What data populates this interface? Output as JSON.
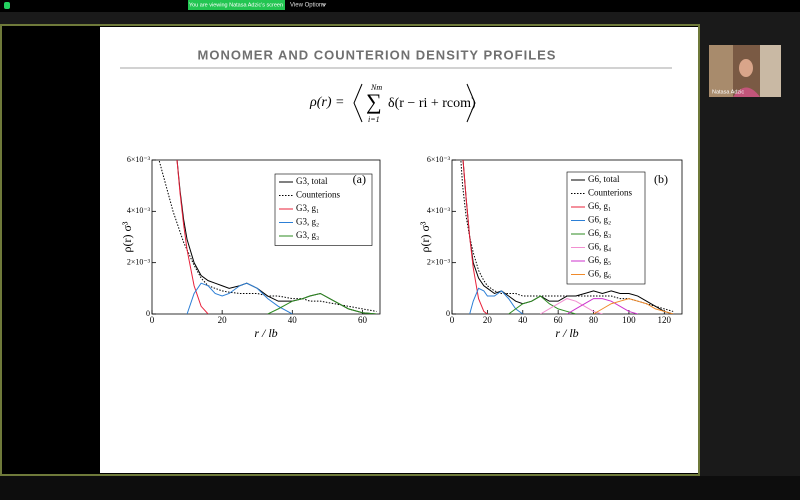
{
  "zoom_bar": {
    "banner": "You are viewing Natasa Adzic's screen",
    "view_options": "View Options"
  },
  "participant": {
    "name": "Natasa Adzic"
  },
  "slide": {
    "title": "MONOMER AND COUNTERION DENSITY PROFILES",
    "formula": {
      "lhs": "ρ(r) =",
      "sum": "∑",
      "upper": "Nm",
      "lower": "i=1",
      "body": "δ(r − ri + rcom)"
    }
  },
  "chart_data": [
    {
      "type": "line",
      "annotation": "(a)",
      "x_label": "r / lb",
      "y_label": "ρ(r) σ³",
      "xlim": [
        0,
        65
      ],
      "ylim": [
        0,
        0.006
      ],
      "xticks": [
        0,
        20,
        40,
        60
      ],
      "yticks": [
        0,
        {
          "value": 0.002,
          "label": "2×10⁻³"
        },
        {
          "value": 0.004,
          "label": "4×10⁻³"
        },
        {
          "value": 0.006,
          "label": "6×10⁻³"
        }
      ],
      "legend": "upper right",
      "x": [
        0,
        1,
        2,
        3,
        4,
        5,
        6,
        7,
        8,
        9,
        10,
        12,
        14,
        16,
        18,
        20,
        22,
        25,
        27,
        30,
        33,
        36,
        40,
        43,
        45,
        48,
        52,
        56,
        60,
        64
      ],
      "series": [
        {
          "name": "G3, total",
          "color": "#000000",
          "linestyle": "solid",
          "values": [
            null,
            null,
            null,
            null,
            null,
            null,
            null,
            0.0062,
            0.0048,
            0.0037,
            0.0029,
            0.002,
            0.0015,
            0.0013,
            0.0012,
            0.0011,
            0.001,
            0.0011,
            0.0012,
            0.001,
            0.0007,
            0.0005,
            0.0005,
            0.0006,
            0.0007,
            0.0008,
            0.0005,
            0.0002,
            5e-05,
            0
          ]
        },
        {
          "name": "Counterions",
          "color": "#000000",
          "linestyle": "dotted",
          "values": [
            null,
            0.007,
            0.006,
            0.0055,
            0.005,
            0.0045,
            0.004,
            0.0036,
            0.0032,
            0.0028,
            0.0025,
            0.0019,
            0.0014,
            0.0011,
            0.001,
            0.0009,
            0.00085,
            0.0008,
            0.0008,
            0.0008,
            0.0007,
            0.0007,
            0.0006,
            0.0006,
            0.0005,
            0.0005,
            0.0004,
            0.0003,
            0.0002,
            0.0001
          ]
        },
        {
          "name": "G3,  g₁",
          "color": "#e8213a",
          "linestyle": "solid",
          "values": [
            null,
            null,
            null,
            null,
            null,
            null,
            null,
            0.0062,
            0.0047,
            0.0035,
            0.0025,
            0.0011,
            0.0003,
            0,
            null,
            null,
            null,
            null,
            null,
            null,
            null,
            null,
            null,
            null,
            null,
            null,
            null,
            null,
            null,
            null
          ]
        },
        {
          "name": "G3,  g₂",
          "color": "#2c7fd6",
          "linestyle": "solid",
          "values": [
            null,
            null,
            null,
            null,
            null,
            null,
            null,
            null,
            null,
            null,
            0,
            0.0008,
            0.0012,
            0.0011,
            0.0008,
            0.0007,
            0.0008,
            0.0011,
            0.0012,
            0.001,
            0.0006,
            0.0003,
            0,
            null,
            null,
            null,
            null,
            null,
            null,
            null
          ]
        },
        {
          "name": "G3,  g₃",
          "color": "#2e8b22",
          "linestyle": "solid",
          "values": [
            null,
            null,
            null,
            null,
            null,
            null,
            null,
            null,
            null,
            null,
            null,
            null,
            null,
            null,
            null,
            null,
            null,
            null,
            null,
            null,
            0,
            0.0002,
            0.0005,
            0.0006,
            0.0007,
            0.0008,
            0.0005,
            0.0002,
            5e-05,
            0
          ]
        }
      ]
    },
    {
      "type": "line",
      "annotation": "(b)",
      "x_label": "r / lb",
      "y_label": "ρ(r) σ³",
      "xlim": [
        0,
        130
      ],
      "ylim": [
        0,
        0.006
      ],
      "xticks": [
        0,
        20,
        40,
        60,
        80,
        100,
        120
      ],
      "yticks": [
        0,
        {
          "value": 0.002,
          "label": "2×10⁻³"
        },
        {
          "value": 0.004,
          "label": "4×10⁻³"
        },
        {
          "value": 0.006,
          "label": "6×10⁻³"
        }
      ],
      "legend": "upper right",
      "x": [
        3,
        5,
        6,
        8,
        10,
        12,
        15,
        18,
        20,
        24,
        28,
        32,
        36,
        40,
        45,
        50,
        55,
        60,
        65,
        70,
        75,
        80,
        85,
        90,
        95,
        100,
        105,
        110,
        115,
        120,
        125
      ],
      "series": [
        {
          "name": "G6,  total",
          "color": "#000000",
          "linestyle": "solid",
          "values": [
            null,
            null,
            0.0062,
            0.0045,
            0.003,
            0.002,
            0.0014,
            0.0011,
            0.001,
            0.0008,
            0.0009,
            0.0007,
            0.0005,
            0.0004,
            0.0005,
            0.0007,
            0.0005,
            0.0005,
            0.0007,
            0.0007,
            0.0008,
            0.0009,
            0.0008,
            0.0009,
            0.0008,
            0.0008,
            0.0007,
            0.0005,
            0.0003,
            0.0001,
            0
          ]
        },
        {
          "name": "Counterions",
          "color": "#000000",
          "linestyle": "dotted",
          "values": [
            0.007,
            0.006,
            0.005,
            0.0038,
            0.003,
            0.0024,
            0.0017,
            0.0013,
            0.0011,
            0.0009,
            0.0008,
            0.0008,
            0.0008,
            0.0007,
            0.0007,
            0.0007,
            0.0007,
            0.0007,
            0.0007,
            0.0007,
            0.0007,
            0.0007,
            0.0007,
            0.0007,
            0.0006,
            0.0006,
            0.0005,
            0.0004,
            0.0003,
            0.0002,
            0.0001
          ]
        },
        {
          "name": "G6,  g₁",
          "color": "#e8213a",
          "linestyle": "solid",
          "values": [
            null,
            null,
            0.0062,
            0.0045,
            0.003,
            0.0018,
            0.0006,
            0.0001,
            0,
            null,
            null,
            null,
            null,
            null,
            null,
            null,
            null,
            null,
            null,
            null,
            null,
            null,
            null,
            null,
            null,
            null,
            null,
            null,
            null,
            null,
            null
          ]
        },
        {
          "name": "G6,  g₂",
          "color": "#2c7fd6",
          "linestyle": "solid",
          "values": [
            null,
            null,
            null,
            null,
            0,
            0.0005,
            0.001,
            0.0009,
            0.0007,
            0.0007,
            0.0009,
            0.0006,
            0.0002,
            0,
            null,
            null,
            null,
            null,
            null,
            null,
            null,
            null,
            null,
            null,
            null,
            null,
            null,
            null,
            null,
            null,
            null
          ]
        },
        {
          "name": "G6,  g₃",
          "color": "#2e8b22",
          "linestyle": "solid",
          "values": [
            null,
            null,
            null,
            null,
            null,
            null,
            null,
            null,
            null,
            null,
            null,
            0,
            0.0002,
            0.0004,
            0.0005,
            0.0007,
            0.0004,
            0.0002,
            0.0001,
            0,
            null,
            null,
            null,
            null,
            null,
            null,
            null,
            null,
            null,
            null,
            null
          ]
        },
        {
          "name": "G6,  g₄",
          "color": "#f28fd0",
          "linestyle": "solid",
          "values": [
            null,
            null,
            null,
            null,
            null,
            null,
            null,
            null,
            null,
            null,
            null,
            null,
            null,
            null,
            null,
            0,
            0.0002,
            0.0004,
            0.0006,
            0.0005,
            0.0003,
            0.0001,
            0,
            null,
            null,
            null,
            null,
            null,
            null,
            null,
            null
          ]
        },
        {
          "name": "G6,  g₅",
          "color": "#cc33cc",
          "linestyle": "solid",
          "values": [
            null,
            null,
            null,
            null,
            null,
            null,
            null,
            null,
            null,
            null,
            null,
            null,
            null,
            null,
            null,
            null,
            null,
            null,
            0,
            0.0002,
            0.0004,
            0.0006,
            0.0006,
            0.0005,
            0.0003,
            0.0001,
            0,
            null,
            null,
            null,
            null
          ]
        },
        {
          "name": "G6,  g₆",
          "color": "#f08a2a",
          "linestyle": "solid",
          "values": [
            null,
            null,
            null,
            null,
            null,
            null,
            null,
            null,
            null,
            null,
            null,
            null,
            null,
            null,
            null,
            null,
            null,
            null,
            null,
            null,
            null,
            0,
            0.0002,
            0.0004,
            0.0005,
            0.0006,
            0.0005,
            0.0004,
            0.0002,
            0.0001,
            0
          ]
        }
      ]
    }
  ]
}
